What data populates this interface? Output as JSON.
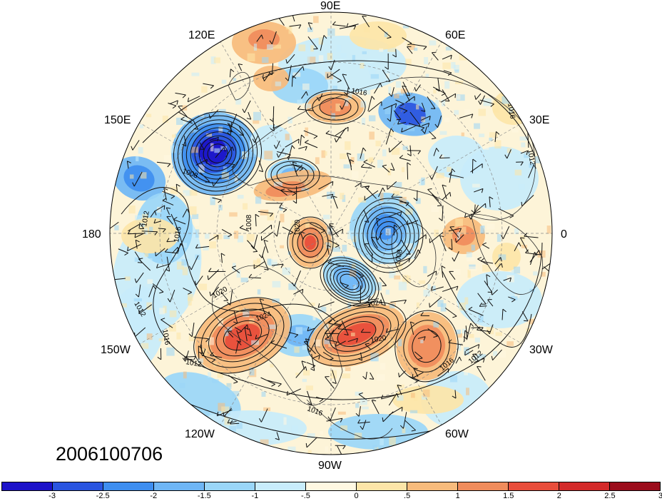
{
  "map": {
    "projection": "north polar stereographic",
    "lon_labels": [
      "90E",
      "60E",
      "30E",
      "0",
      "30W",
      "60W",
      "90W",
      "120W",
      "150W",
      "180",
      "150E",
      "120E"
    ],
    "contour_labels": [
      "1008",
      "1012",
      "1016",
      "1020",
      "1024"
    ],
    "colors": {
      "ocean_fill": "#fdf4d8",
      "coast": "#333333",
      "contour": "#111111",
      "vector": "#111111"
    }
  },
  "date_label": "2006100706",
  "colorbar": {
    "ticks": [
      "-3",
      "-2.5",
      "-2",
      "-1.5",
      "-1",
      "-.5",
      "0",
      ".5",
      "1",
      "1.5",
      "2",
      "2.5",
      "3"
    ],
    "colors": [
      "#1c12c9",
      "#2a55e0",
      "#3e8ef0",
      "#6fb6f5",
      "#9ad6f8",
      "#c8ecfb",
      "#fff8e2",
      "#fde5a8",
      "#f7bb7c",
      "#f08c5c",
      "#e84d3b",
      "#d32a2a",
      "#9b0c1b"
    ]
  }
}
